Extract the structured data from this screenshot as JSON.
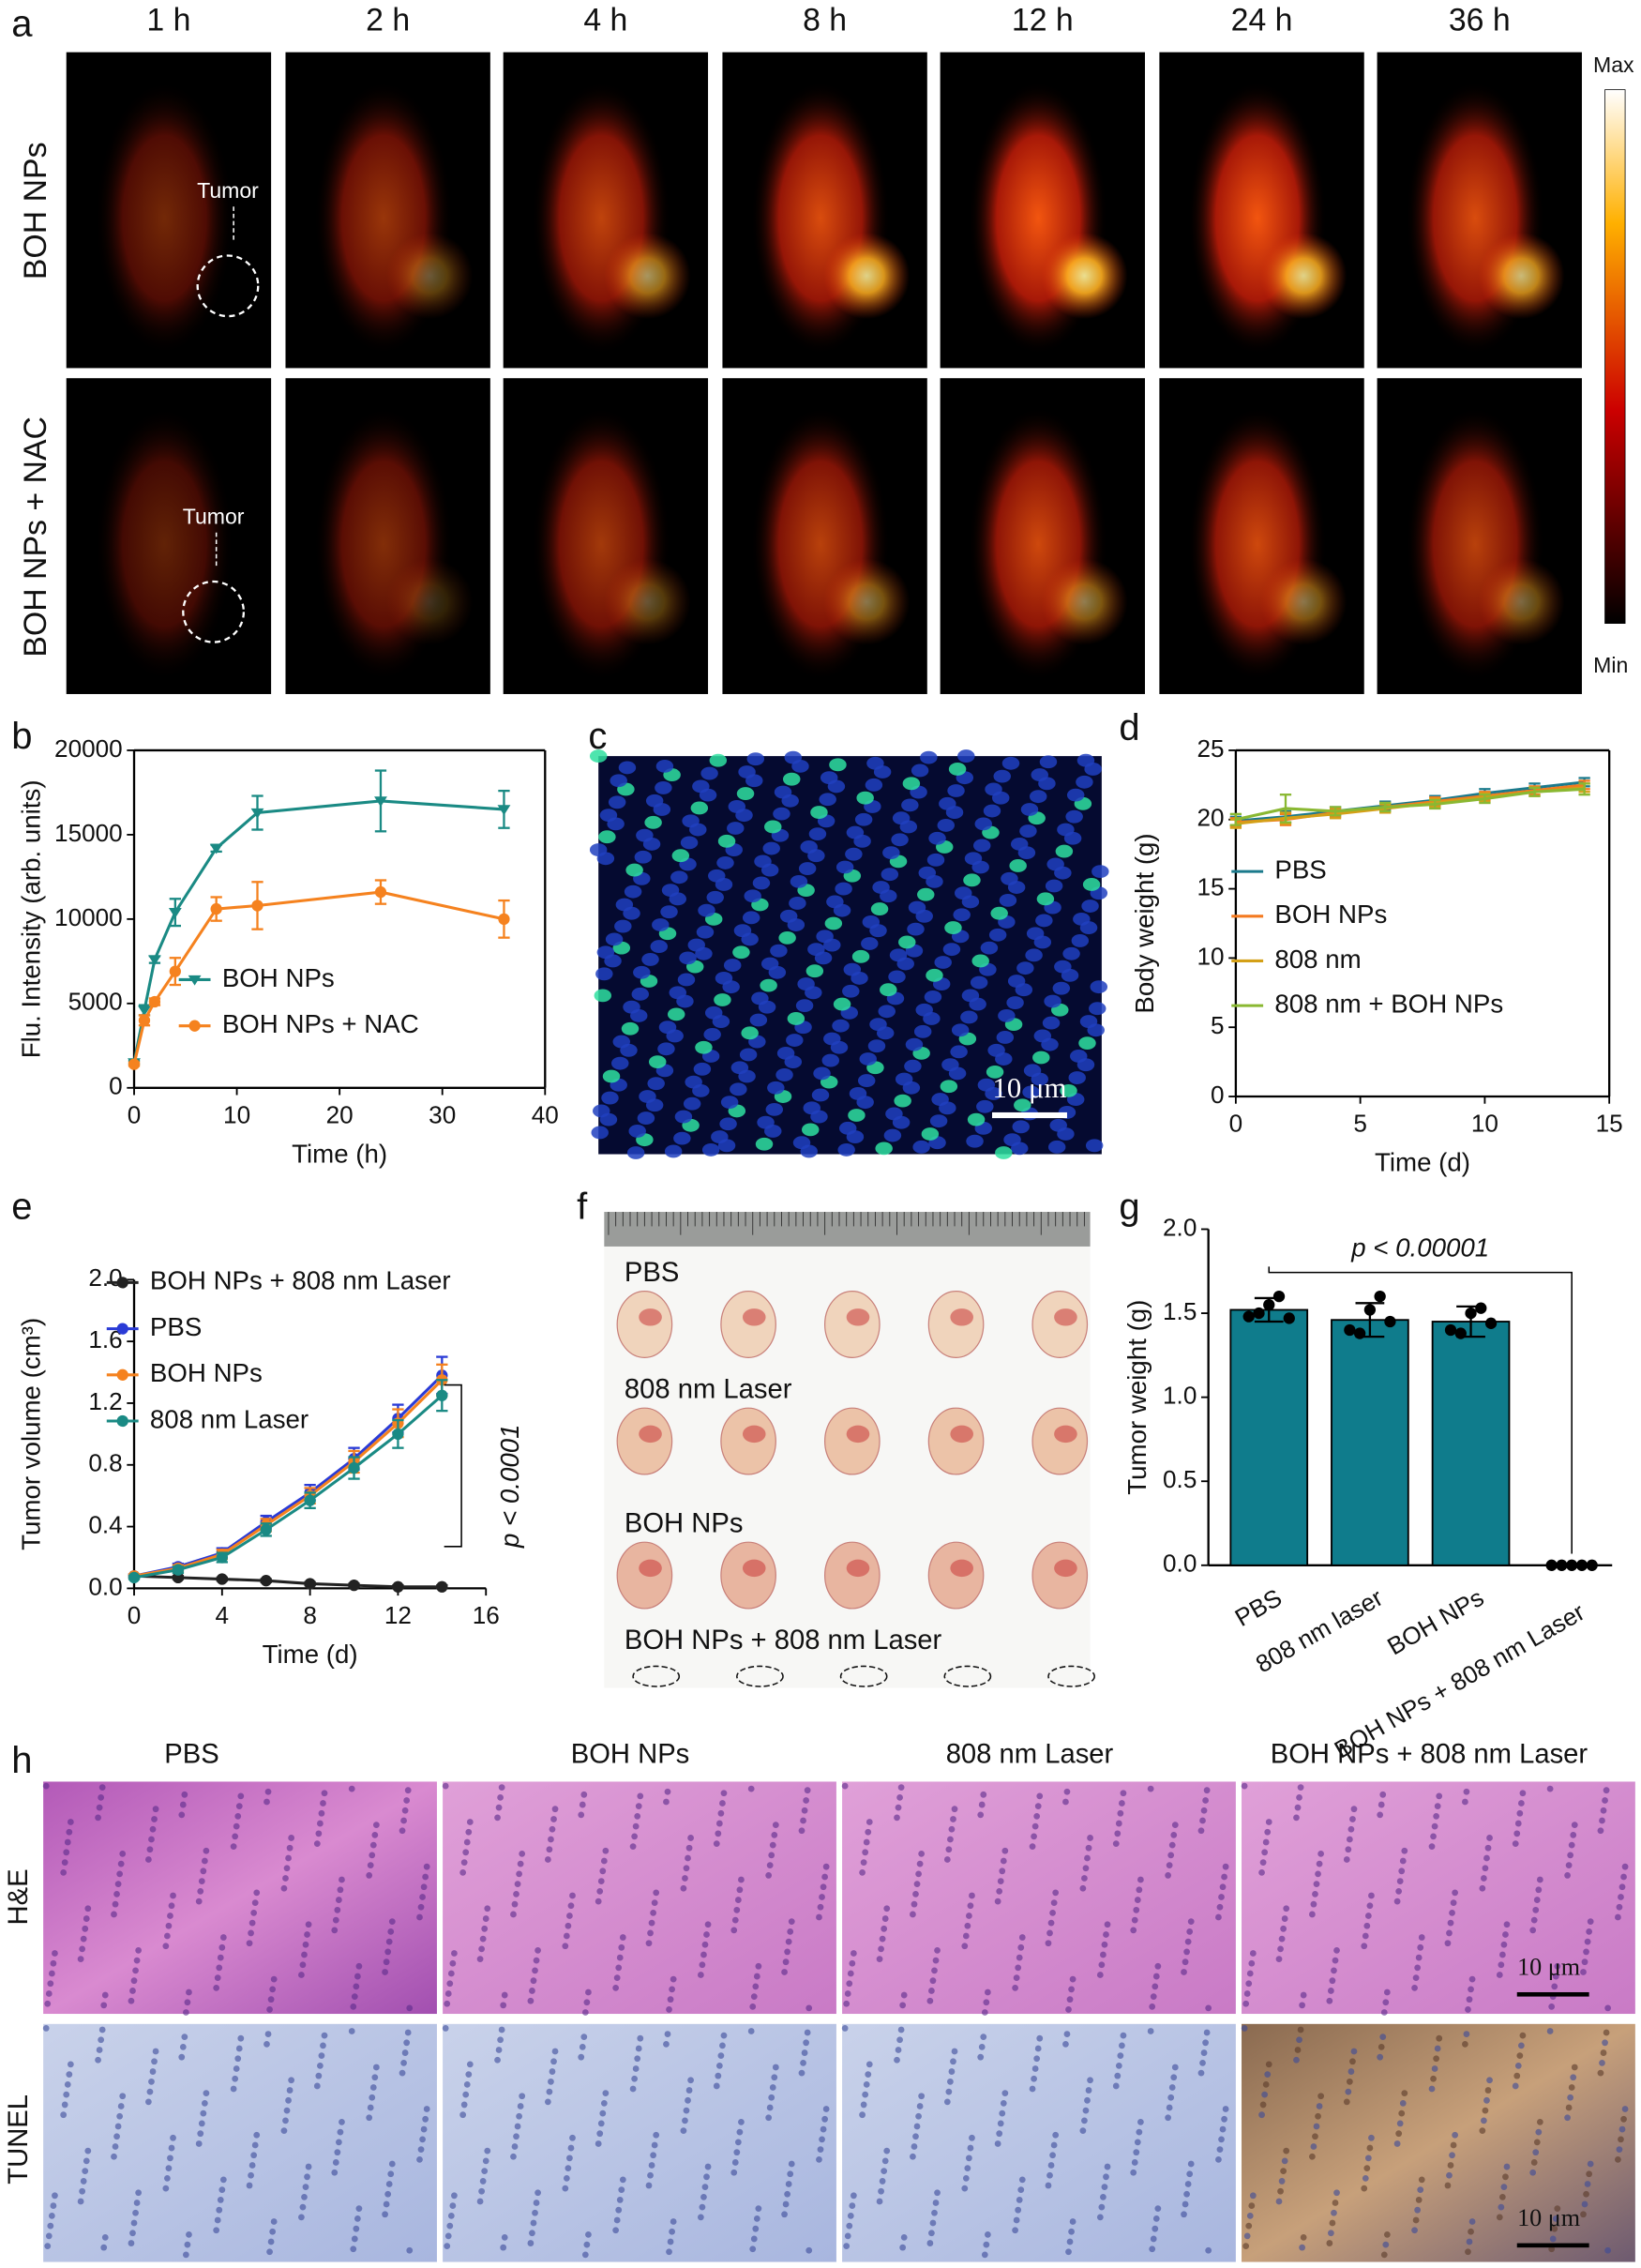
{
  "panel_letters": [
    "a",
    "b",
    "c",
    "d",
    "e",
    "f",
    "g",
    "h"
  ],
  "panel_a": {
    "times": [
      "1 h",
      "2 h",
      "4 h",
      "8 h",
      "12 h",
      "24 h",
      "36 h"
    ],
    "rows": [
      "BOH NPs",
      "BOH NPs + NAC"
    ],
    "annotations": [
      "Tumor",
      "Tumor"
    ],
    "colorbar": {
      "max": "Max",
      "min": "Min"
    }
  },
  "panel_c": {
    "scale": "10 μm"
  },
  "panel_f": {
    "groups": [
      "PBS",
      "808 nm Laser",
      "BOH NPs",
      "BOH NPs + 808 nm Laser"
    ]
  },
  "panel_h": {
    "columns": [
      "PBS",
      "BOH NPs",
      "808 nm Laser",
      "BOH NPs + 808 nm Laser"
    ],
    "rows": [
      "H&E",
      "TUNEL"
    ],
    "scales": [
      "10 μm",
      "10 μm"
    ]
  },
  "chart_data": [
    {
      "type": "line",
      "xlabel": "Time (h)",
      "ylabel": "Flu. Intensity (arb. units)",
      "box": true,
      "x": [
        0,
        1,
        2,
        4,
        8,
        12,
        24,
        36
      ],
      "xlim": [
        0,
        40
      ],
      "xticks": [
        0,
        10,
        20,
        30,
        40
      ],
      "ylim": [
        0,
        20000
      ],
      "yticks": [
        0,
        5000,
        10000,
        15000,
        20000
      ],
      "series": [
        {
          "name": "BOH NPs",
          "color": "#1a8a84",
          "marker": "triangle",
          "values": [
            1500,
            4600,
            7600,
            10400,
            14200,
            16300,
            17000,
            16500
          ],
          "errors": [
            100,
            300,
            200,
            800,
            200,
            1000,
            1800,
            1100
          ]
        },
        {
          "name": "BOH NPs + NAC",
          "color": "#f5821f",
          "marker": "circle",
          "values": [
            1400,
            4000,
            5100,
            6900,
            10600,
            10800,
            11600,
            10000
          ],
          "errors": [
            100,
            300,
            200,
            800,
            700,
            1400,
            700,
            1100
          ]
        }
      ]
    },
    {
      "type": "line",
      "xlabel": "Time (d)",
      "ylabel": "Body weight (g)",
      "box": true,
      "x": [
        0,
        2,
        4,
        6,
        8,
        10,
        12,
        14
      ],
      "xlim": [
        0,
        15
      ],
      "xticks": [
        0,
        5,
        10,
        15
      ],
      "ylim": [
        0,
        25
      ],
      "yticks": [
        0,
        5,
        10,
        15,
        20,
        25
      ],
      "series": [
        {
          "name": "PBS",
          "color": "#1b7a8c",
          "marker": "none",
          "values": [
            19.9,
            20.2,
            20.6,
            21.0,
            21.4,
            21.9,
            22.3,
            22.7
          ],
          "errors": [
            0.3,
            0.4,
            0.3,
            0.3,
            0.3,
            0.3,
            0.3,
            0.3
          ]
        },
        {
          "name": "BOH NPs",
          "color": "#f47a20",
          "marker": "none",
          "values": [
            19.8,
            20.0,
            20.5,
            20.9,
            21.3,
            21.7,
            22.1,
            22.5
          ],
          "errors": [
            0.3,
            0.4,
            0.3,
            0.3,
            0.3,
            0.3,
            0.3,
            0.3
          ]
        },
        {
          "name": "808 nm",
          "color": "#d4a017",
          "marker": "none",
          "values": [
            19.7,
            20.1,
            20.4,
            20.8,
            21.2,
            21.6,
            22.0,
            22.3
          ],
          "errors": [
            0.3,
            0.4,
            0.3,
            0.3,
            0.3,
            0.3,
            0.3,
            0.3
          ]
        },
        {
          "name": "808 nm + BOH NPs",
          "color": "#8ab832",
          "marker": "none",
          "values": [
            20.0,
            20.8,
            20.6,
            20.9,
            21.1,
            21.5,
            22.0,
            22.2
          ],
          "errors": [
            0.4,
            1.0,
            0.3,
            0.3,
            0.3,
            0.3,
            0.3,
            0.4
          ]
        }
      ]
    },
    {
      "type": "line",
      "xlabel": "Time (d)",
      "ylabel": "Tumor volume (cm³)",
      "box": false,
      "annotation": "p < 0.0001",
      "x": [
        0,
        2,
        4,
        6,
        8,
        10,
        12,
        14
      ],
      "xlim": [
        0,
        16
      ],
      "xticks": [
        0,
        4,
        8,
        12,
        16
      ],
      "ylim": [
        0,
        2.0
      ],
      "yticks": [
        {
          "value": 0,
          "label": "0.0"
        },
        0.4,
        0.8,
        1.2,
        1.6,
        {
          "value": 2,
          "label": "2.0"
        }
      ],
      "series": [
        {
          "name": "BOH NPs + 808 nm Laser",
          "color": "#222222",
          "marker": "circle",
          "values": [
            0.08,
            0.07,
            0.06,
            0.05,
            0.03,
            0.02,
            0.01,
            0.01
          ],
          "errors": [
            0.01,
            0.01,
            0.01,
            0.01,
            0.01,
            0.01,
            0.01,
            0.01
          ]
        },
        {
          "name": "PBS",
          "color": "#2a3bd6",
          "marker": "circle",
          "values": [
            0.08,
            0.14,
            0.23,
            0.43,
            0.62,
            0.84,
            1.1,
            1.38
          ],
          "errors": [
            0.01,
            0.02,
            0.03,
            0.04,
            0.05,
            0.07,
            0.09,
            0.12
          ]
        },
        {
          "name": "BOH NPs",
          "color": "#f5821f",
          "marker": "circle",
          "values": [
            0.08,
            0.13,
            0.22,
            0.41,
            0.6,
            0.82,
            1.07,
            1.35
          ],
          "errors": [
            0.01,
            0.02,
            0.03,
            0.04,
            0.05,
            0.07,
            0.09,
            0.1
          ]
        },
        {
          "name": "808 nm Laser",
          "color": "#1a8a84",
          "marker": "circle",
          "values": [
            0.07,
            0.12,
            0.2,
            0.38,
            0.57,
            0.78,
            1.0,
            1.25
          ],
          "errors": [
            0.01,
            0.02,
            0.03,
            0.04,
            0.05,
            0.07,
            0.09,
            0.1
          ]
        }
      ]
    },
    {
      "type": "bar",
      "ylabel": "Tumor weight (g)",
      "box": false,
      "annotation": "p < 0.00001",
      "color": "#0f7c8c",
      "categories": [
        "PBS",
        "808 nm laser",
        "BOH NPs",
        "BOH NPs + 808 nm Laser"
      ],
      "values": [
        1.52,
        1.46,
        1.45,
        0.0
      ],
      "errors": [
        0.07,
        0.1,
        0.09,
        0.0
      ],
      "points": [
        [
          1.48,
          1.5,
          1.55,
          1.6,
          1.47
        ],
        [
          1.4,
          1.38,
          1.52,
          1.6,
          1.45
        ],
        [
          1.4,
          1.38,
          1.5,
          1.53,
          1.44
        ],
        [
          0,
          0,
          0,
          0,
          0
        ]
      ],
      "ylim": [
        0,
        2.0
      ],
      "yticks": [
        {
          "value": 0,
          "label": "0.0"
        },
        0.5,
        {
          "value": 1,
          "label": "1.0"
        },
        1.5,
        {
          "value": 2,
          "label": "2.0"
        }
      ]
    }
  ]
}
